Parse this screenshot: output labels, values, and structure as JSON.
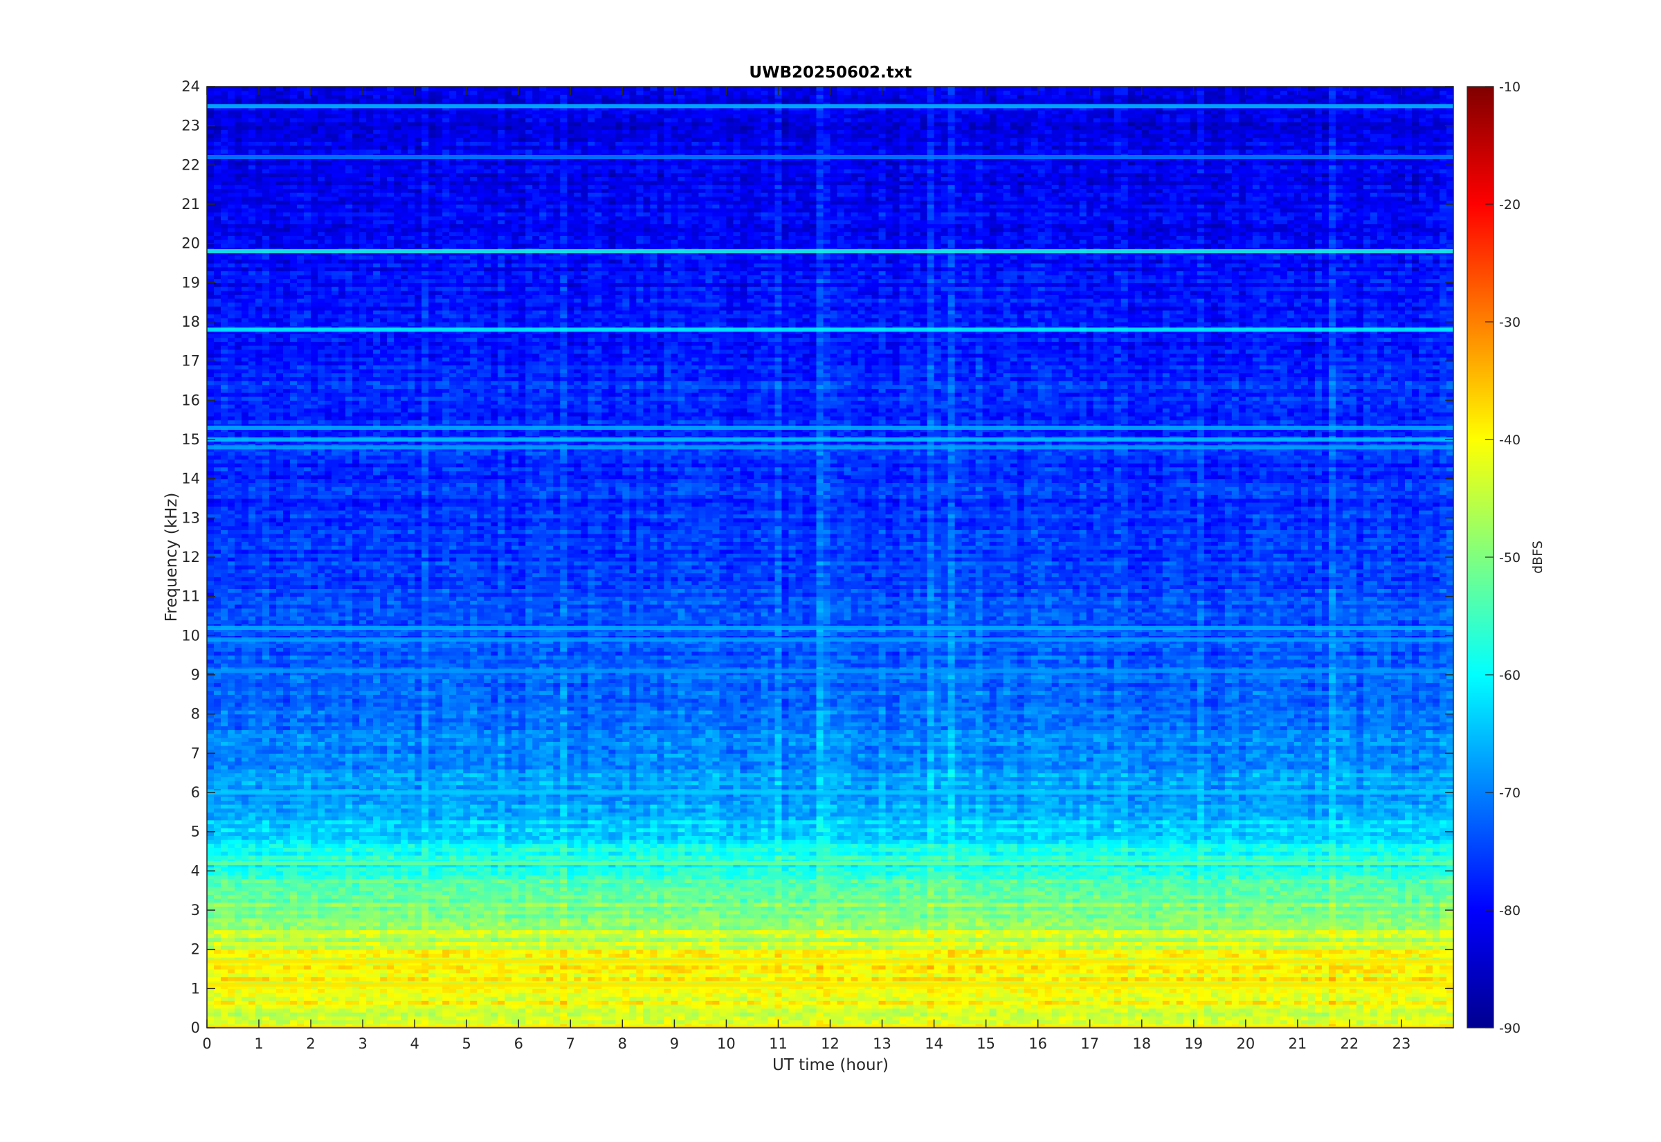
{
  "chart_data": {
    "type": "heatmap",
    "title": "UWB20250602.txt",
    "xlabel": "UT time (hour)",
    "ylabel": "Frequency (kHz)",
    "xlim": [
      0,
      24
    ],
    "ylim": [
      0,
      24
    ],
    "x_ticks": [
      "0",
      "1",
      "2",
      "3",
      "4",
      "5",
      "6",
      "7",
      "8",
      "9",
      "10",
      "11",
      "12",
      "13",
      "14",
      "15",
      "16",
      "17",
      "18",
      "19",
      "20",
      "21",
      "22",
      "23"
    ],
    "y_ticks": [
      "0",
      "1",
      "2",
      "3",
      "4",
      "5",
      "6",
      "7",
      "8",
      "9",
      "10",
      "11",
      "12",
      "13",
      "14",
      "15",
      "16",
      "17",
      "18",
      "19",
      "20",
      "21",
      "22",
      "23",
      "24"
    ],
    "colorbar": {
      "label": "dBFS",
      "colormap": "jet",
      "range": [
        -90,
        -10
      ],
      "ticks": [
        "-10",
        "-20",
        "-30",
        "-40",
        "-50",
        "-60",
        "-70",
        "-80",
        "-90"
      ]
    },
    "features": {
      "horizontal_lines_khz": [
        {
          "freq": 23.5,
          "level": -65
        },
        {
          "freq": 22.2,
          "level": -70
        },
        {
          "freq": 19.8,
          "level": -58
        },
        {
          "freq": 17.8,
          "level": -60
        },
        {
          "freq": 15.3,
          "level": -66
        },
        {
          "freq": 15.0,
          "level": -64
        },
        {
          "freq": 14.8,
          "level": -67
        },
        {
          "freq": 10.2,
          "level": -66
        },
        {
          "freq": 9.9,
          "level": -67
        },
        {
          "freq": 9.1,
          "level": -68
        },
        {
          "freq": 6.0,
          "level": -64
        },
        {
          "freq": 4.2,
          "level": -52
        },
        {
          "freq": 1.7,
          "level": -38
        },
        {
          "freq": 1.1,
          "level": -38
        },
        {
          "freq": 0.0,
          "level": -36
        }
      ],
      "background_dbfs_by_freq": [
        {
          "freq": 0.5,
          "level": -42
        },
        {
          "freq": 1.5,
          "level": -40
        },
        {
          "freq": 2.5,
          "level": -46
        },
        {
          "freq": 3.5,
          "level": -55
        },
        {
          "freq": 4.5,
          "level": -60
        },
        {
          "freq": 5.5,
          "level": -66
        },
        {
          "freq": 7.0,
          "level": -70
        },
        {
          "freq": 9.0,
          "level": -73
        },
        {
          "freq": 12.0,
          "level": -76
        },
        {
          "freq": 16.0,
          "level": -77
        },
        {
          "freq": 20.0,
          "level": -80
        },
        {
          "freq": 23.0,
          "level": -82
        }
      ]
    }
  }
}
